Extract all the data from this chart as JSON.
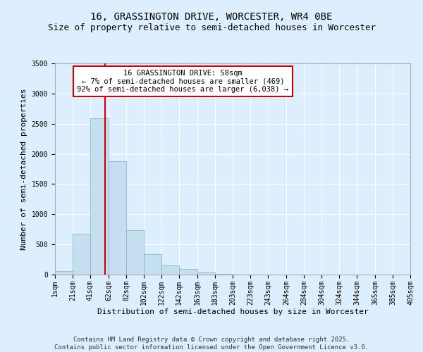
{
  "title": "16, GRASSINGTON DRIVE, WORCESTER, WR4 0BE",
  "subtitle": "Size of property relative to semi-detached houses in Worcester",
  "xlabel": "Distribution of semi-detached houses by size in Worcester",
  "ylabel": "Number of semi-detached properties",
  "bin_edges": [
    1,
    21,
    41,
    62,
    82,
    102,
    122,
    142,
    163,
    183,
    203,
    223,
    243,
    264,
    284,
    304,
    324,
    344,
    365,
    385,
    405
  ],
  "bin_heights": [
    55,
    680,
    2590,
    1880,
    730,
    335,
    155,
    90,
    40,
    10,
    5,
    0,
    0,
    0,
    5,
    0,
    0,
    0,
    0,
    0
  ],
  "bar_color": "#c6dff0",
  "bar_edgecolor": "#7aafc8",
  "vline_x": 58,
  "vline_color": "#cc0000",
  "ylim": [
    0,
    3500
  ],
  "yticks": [
    0,
    500,
    1000,
    1500,
    2000,
    2500,
    3000,
    3500
  ],
  "annotation_title": "16 GRASSINGTON DRIVE: 58sqm",
  "annotation_line1": "← 7% of semi-detached houses are smaller (469)",
  "annotation_line2": "92% of semi-detached houses are larger (6,038) →",
  "annotation_box_color": "#ffffff",
  "annotation_box_edgecolor": "#cc0000",
  "background_color": "#ddeeff",
  "grid_color": "#ffffff",
  "footer_line1": "Contains HM Land Registry data © Crown copyright and database right 2025.",
  "footer_line2": "Contains public sector information licensed under the Open Government Licence v3.0.",
  "x_tick_labels": [
    "1sqm",
    "21sqm",
    "41sqm",
    "62sqm",
    "82sqm",
    "102sqm",
    "122sqm",
    "142sqm",
    "163sqm",
    "183sqm",
    "203sqm",
    "223sqm",
    "243sqm",
    "264sqm",
    "284sqm",
    "304sqm",
    "324sqm",
    "344sqm",
    "365sqm",
    "385sqm",
    "405sqm"
  ],
  "title_fontsize": 10,
  "subtitle_fontsize": 9,
  "axis_label_fontsize": 8,
  "tick_fontsize": 7,
  "annotation_fontsize": 7.5,
  "footer_fontsize": 6.5
}
